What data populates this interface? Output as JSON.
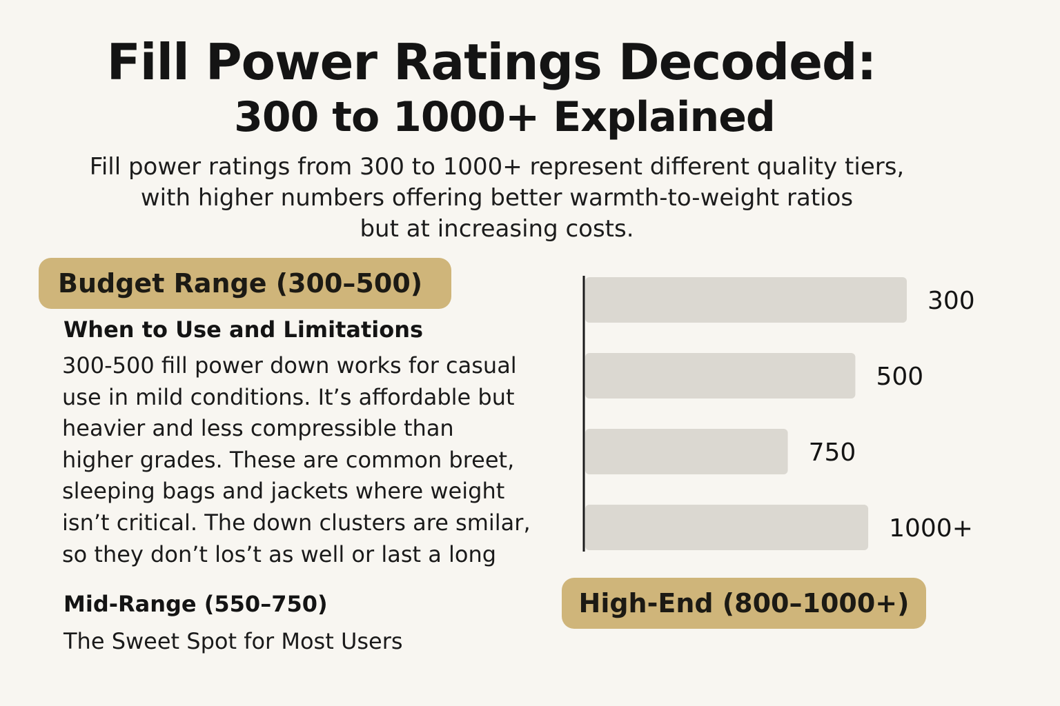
{
  "header": {
    "title_line1": "Fill Power Ratings Decoded:",
    "title_line2": "300 to 1000+ Explained",
    "intro_lines": [
      "Fill power ratings from 300 to 1000+ represent different quality tiers,",
      "with higher numbers offering better warmth-to-weight ratios",
      "but at increasing costs."
    ]
  },
  "budget": {
    "badge": "Budget Range (300–500)",
    "heading": "When to Use and Limitations",
    "body_lines": [
      "300-500 fill power down works for casual",
      "use in mild conditions. It’s affordable but",
      "heavier and less compressible than",
      "higher grades. These are common breet,",
      "sleeping bags and jackets where weight",
      "isn’t critical. The down clusters are smilar,",
      "so they don’t los’t as well or last a long"
    ]
  },
  "mid_range": {
    "heading": "Mid-Range (550–750)",
    "subheading": "The Sweet Spot for Most Users"
  },
  "high_end": {
    "badge": "High-End (800–1000+)"
  },
  "colors": {
    "background": "#f8f6f1",
    "badge": "#cfb57a",
    "bar": "#dbd8d1",
    "text": "#141414"
  },
  "chart_data": {
    "type": "bar",
    "orientation": "horizontal",
    "title": "",
    "xlabel": "",
    "ylabel": "",
    "categories": [
      "300",
      "500",
      "750",
      "1000+"
    ],
    "labels": [
      "300",
      "500",
      "750",
      "1000+"
    ],
    "values": [
      300,
      500,
      750,
      1000
    ],
    "display_lengths": [
      100,
      84,
      63,
      88
    ],
    "display_note": "bar lengths as drawn (percent of longest bar); they do not scale with the labels",
    "grid": false,
    "legend": "none"
  }
}
